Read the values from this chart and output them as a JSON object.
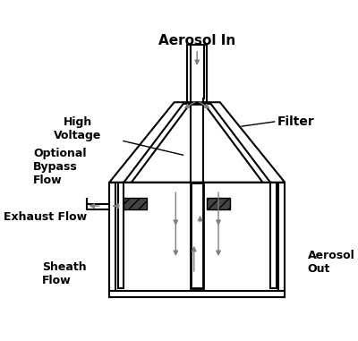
{
  "title": "",
  "bg_color": "#ffffff",
  "labels": {
    "aerosol_in": "Aerosol In",
    "filter": "Filter",
    "high_voltage": "High\nVoltage",
    "optional_bypass": "Optional\nBypass\nFlow",
    "exhaust_flow": "Exhaust Flow",
    "sheath_flow": "Sheath\nFlow",
    "aerosol_out": "Aerosol\nOut"
  },
  "line_color": "#000000",
  "gray_color": "#888888",
  "dark_gray": "#555555",
  "hatch_color": "#333333"
}
